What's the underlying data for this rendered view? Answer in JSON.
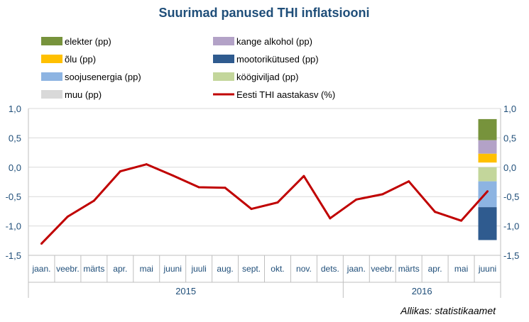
{
  "chart_data": {
    "type": "line",
    "title": "Suurimad panused THI inflatsiooni",
    "source": "Allikas: statistikaamet",
    "categories": [
      "jaan.",
      "veebr.",
      "märts",
      "apr.",
      "mai",
      "juuni",
      "juuli",
      "aug.",
      "sept.",
      "okt.",
      "nov.",
      "dets.",
      "jaan.",
      "veebr.",
      "märts",
      "apr.",
      "mai",
      "juuni"
    ],
    "years": [
      {
        "label": "2015",
        "start_index": 0,
        "end_index": 11
      },
      {
        "label": "2016",
        "start_index": 12,
        "end_index": 17
      }
    ],
    "ylim": [
      -1.5,
      1.0
    ],
    "yticks": [
      "1,0",
      "0,5",
      "0,0",
      "-0,5",
      "-1,0",
      "-1,5"
    ],
    "ytick_values": [
      1.0,
      0.5,
      0.0,
      -0.5,
      -1.0,
      -1.5
    ],
    "grid": true,
    "legend_position": "top",
    "line_series": {
      "name": "Eesti THI aastakasv (%)",
      "color": "#c00000",
      "values": [
        -1.3,
        -0.84,
        -0.57,
        -0.07,
        0.05,
        -0.14,
        -0.34,
        -0.35,
        -0.71,
        -0.6,
        -0.15,
        -0.87,
        -0.55,
        -0.46,
        -0.24,
        -0.76,
        -0.91,
        -0.41
      ]
    },
    "stacked_bar": {
      "category_index": 17,
      "segments": [
        {
          "name": "elekter (pp)",
          "color": "#77933c",
          "from": 0.46,
          "to": 0.82
        },
        {
          "name": "kange alkohol (pp)",
          "color": "#b3a2c7",
          "from": 0.23,
          "to": 0.46
        },
        {
          "name": "õlu (pp)",
          "color": "#ffc000",
          "from": 0.08,
          "to": 0.23
        },
        {
          "name": "köögiviljad (pp)",
          "color": "#c3d69b",
          "from": -0.24,
          "to": 0.0
        },
        {
          "name": "soojusenergia (pp)",
          "color": "#8db4e2",
          "from": -0.68,
          "to": -0.24
        },
        {
          "name": "mootorikütused (pp)",
          "color": "#2f5b8f",
          "from": -1.24,
          "to": -0.68
        }
      ]
    },
    "legend": [
      {
        "label": "elekter (pp)",
        "color": "#77933c",
        "kind": "box"
      },
      {
        "label": "kange alkohol (pp)",
        "color": "#b3a2c7",
        "kind": "box"
      },
      {
        "label": "õlu (pp)",
        "color": "#ffc000",
        "kind": "box"
      },
      {
        "label": "mootorikütused (pp)",
        "color": "#2f5b8f",
        "kind": "box"
      },
      {
        "label": "soojusenergia (pp)",
        "color": "#8db4e2",
        "kind": "box"
      },
      {
        "label": "köögiviljad (pp)",
        "color": "#c3d69b",
        "kind": "box"
      },
      {
        "label": "muu (pp)",
        "color": "#d9d9d9",
        "kind": "box"
      },
      {
        "label": "Eesti THI aastakasv (%)",
        "color": "#c00000",
        "kind": "line"
      }
    ]
  }
}
